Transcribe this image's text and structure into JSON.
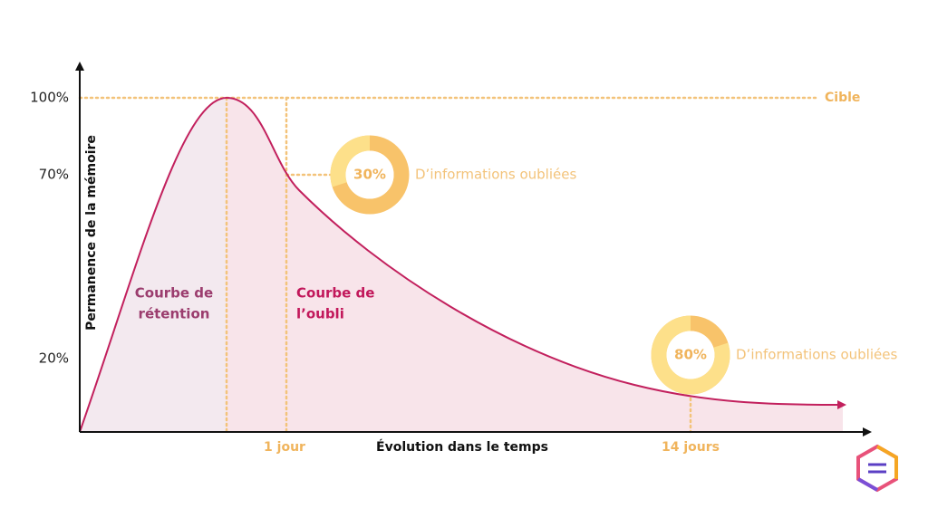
{
  "y_label": "Permanence de la mémoire",
  "x_label": "Évolution dans le temps",
  "y_ticks": [
    {
      "value": 100,
      "label": "100%"
    },
    {
      "value": 70,
      "label": "70%"
    },
    {
      "value": 20,
      "label": "20%"
    }
  ],
  "x_ticks": [
    "1 jour",
    "14 jours"
  ],
  "target": "Cible",
  "curves": {
    "retention": [
      "Courbe de",
      "rétention"
    ],
    "forgetting": [
      "Courbe de",
      "l’oubli"
    ]
  },
  "callouts": [
    {
      "value": 30,
      "label": "30%",
      "text": "D’informations oubliées"
    },
    {
      "value": 80,
      "label": "80%",
      "text": "D’informations oubliées"
    }
  ]
}
